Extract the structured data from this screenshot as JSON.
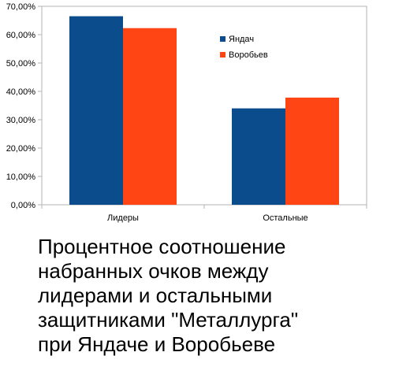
{
  "chart_data": {
    "type": "bar",
    "categories": [
      "Лидеры",
      "Остальные"
    ],
    "series": [
      {
        "name": "Яндач",
        "color": "#0b4d8c",
        "values": [
          66.5,
          34.0
        ]
      },
      {
        "name": "Воробьев",
        "color": "#ff4513",
        "values": [
          62.3,
          37.8
        ]
      }
    ],
    "ylim": [
      0,
      70
    ],
    "yticks": [
      "0,00%",
      "10,00%",
      "20,00%",
      "30,00%",
      "40,00%",
      "50,00%",
      "60,00%",
      "70,00%"
    ],
    "grid": false,
    "legend_position": "right"
  },
  "caption": {
    "lines": [
      "Процентное соотношение",
      "набранных очков между",
      "лидерами и остальными",
      "защитниками \"Металлурга\"",
      "при Яндаче и Воробьеве"
    ]
  }
}
